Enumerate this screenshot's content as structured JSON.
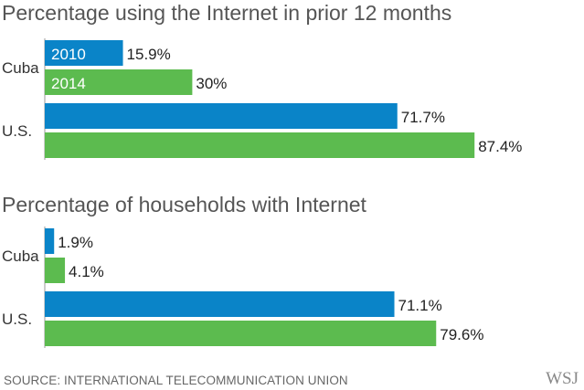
{
  "colors": {
    "series_2010": "#0a84c8",
    "series_2014": "#5cbb4f",
    "axis": "#999999"
  },
  "chart_data": [
    {
      "type": "bar",
      "orientation": "horizontal",
      "title": "Percentage using the Internet in prior 12 months",
      "categories": [
        "Cuba",
        "U.S."
      ],
      "series": [
        {
          "name": "2010",
          "values": [
            15.9,
            71.7
          ],
          "labels": [
            "15.9%",
            "71.7%"
          ]
        },
        {
          "name": "2014",
          "values": [
            30,
            87.4
          ],
          "labels": [
            "30%",
            "87.4%"
          ]
        }
      ],
      "xlim": [
        0,
        100
      ],
      "grid": false,
      "legend": "inside-bars"
    },
    {
      "type": "bar",
      "orientation": "horizontal",
      "title": "Percentage of households with Internet",
      "categories": [
        "Cuba",
        "U.S."
      ],
      "series": [
        {
          "name": "2010",
          "values": [
            1.9,
            71.1
          ],
          "labels": [
            "1.9%",
            "71.1%"
          ]
        },
        {
          "name": "2014",
          "values": [
            4.1,
            79.6
          ],
          "labels": [
            "4.1%",
            "79.6%"
          ]
        }
      ],
      "xlim": [
        0,
        100
      ],
      "grid": false,
      "legend": "none"
    }
  ],
  "footer": {
    "source": "SOURCE: INTERNATIONAL TELECOMMUNICATION UNION",
    "logo": "WSJ"
  }
}
